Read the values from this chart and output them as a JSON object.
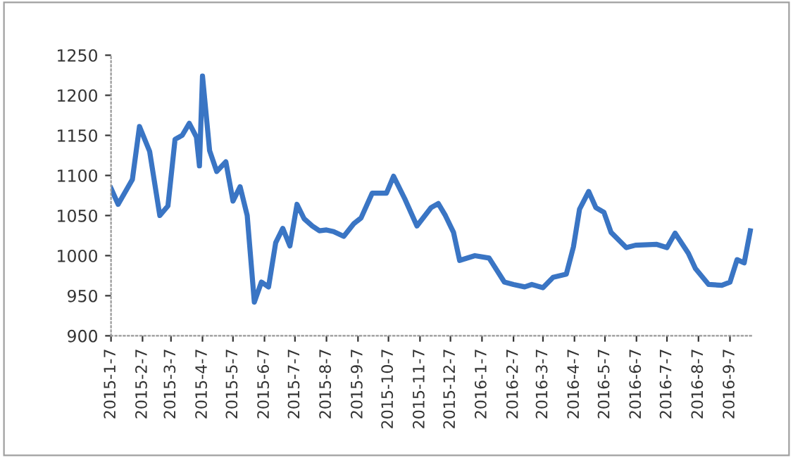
{
  "chart_data": {
    "type": "line",
    "x": [
      "2015-01-07",
      "2015-01-14",
      "2015-01-28",
      "2015-02-04",
      "2015-02-14",
      "2015-02-24",
      "2015-03-04",
      "2015-03-11",
      "2015-03-18",
      "2015-03-25",
      "2015-04-01",
      "2015-04-04",
      "2015-04-07",
      "2015-04-14",
      "2015-04-21",
      "2015-04-30",
      "2015-05-07",
      "2015-05-14",
      "2015-05-21",
      "2015-05-28",
      "2015-06-04",
      "2015-06-11",
      "2015-06-18",
      "2015-06-25",
      "2015-07-02",
      "2015-07-09",
      "2015-07-16",
      "2015-07-24",
      "2015-07-31",
      "2015-08-07",
      "2015-08-14",
      "2015-08-24",
      "2015-09-03",
      "2015-09-10",
      "2015-09-21",
      "2015-10-05",
      "2015-10-12",
      "2015-10-23",
      "2015-11-04",
      "2015-11-18",
      "2015-11-25",
      "2015-12-02",
      "2015-12-10",
      "2015-12-16",
      "2015-12-31",
      "2016-01-14",
      "2016-01-29",
      "2016-02-07",
      "2016-02-18",
      "2016-02-25",
      "2016-03-07",
      "2016-03-17",
      "2016-03-30",
      "2016-04-06",
      "2016-04-12",
      "2016-04-21",
      "2016-04-28",
      "2016-05-06",
      "2016-05-13",
      "2016-05-28",
      "2016-06-06",
      "2016-06-27",
      "2016-07-07",
      "2016-07-15",
      "2016-07-28",
      "2016-08-04",
      "2016-08-17",
      "2016-08-30",
      "2016-09-07",
      "2016-09-14",
      "2016-09-21",
      "2016-09-27"
    ],
    "series": [
      {
        "color": "#3a75c4",
        "values": [
          1084,
          1064,
          1095,
          1161,
          1130,
          1050,
          1062,
          1145,
          1150,
          1165,
          1148,
          1112,
          1224,
          1131,
          1105,
          1117,
          1068,
          1086,
          1050,
          942,
          967,
          961,
          1016,
          1034,
          1012,
          1064,
          1046,
          1037,
          1031,
          1032,
          1030,
          1024,
          1040,
          1047,
          1078,
          1078,
          1099,
          1071,
          1037,
          1060,
          1065,
          1050,
          1029,
          994,
          1000,
          997,
          967,
          964,
          961,
          964,
          960,
          973,
          977,
          1011,
          1058,
          1080,
          1060,
          1054,
          1029,
          1010,
          1013,
          1014,
          1010,
          1028,
          1003,
          984,
          964,
          963,
          967,
          995,
          991,
          1031
        ]
      }
    ],
    "xlim": [
      "2015-01-07",
      "2016-09-30"
    ],
    "xticks": [
      {
        "value": "2015-01-07",
        "label": "2015-1-7"
      },
      {
        "value": "2015-02-07",
        "label": "2015-2-7"
      },
      {
        "value": "2015-03-07",
        "label": "2015-3-7"
      },
      {
        "value": "2015-04-07",
        "label": "2015-4-7"
      },
      {
        "value": "2015-05-07",
        "label": "2015-5-7"
      },
      {
        "value": "2015-06-07",
        "label": "2015-6-7"
      },
      {
        "value": "2015-07-07",
        "label": "2015-7-7"
      },
      {
        "value": "2015-08-07",
        "label": "2015-8-7"
      },
      {
        "value": "2015-09-07",
        "label": "2015-9-7"
      },
      {
        "value": "2015-10-07",
        "label": "2015-10-7"
      },
      {
        "value": "2015-11-07",
        "label": "2015-11-7"
      },
      {
        "value": "2015-12-07",
        "label": "2015-12-7"
      },
      {
        "value": "2016-01-07",
        "label": "2016-1-7"
      },
      {
        "value": "2016-02-07",
        "label": "2016-2-7"
      },
      {
        "value": "2016-03-07",
        "label": "2016-3-7"
      },
      {
        "value": "2016-04-07",
        "label": "2016-4-7"
      },
      {
        "value": "2016-05-07",
        "label": "2016-5-7"
      },
      {
        "value": "2016-06-07",
        "label": "2016-6-7"
      },
      {
        "value": "2016-07-07",
        "label": "2016-7-7"
      },
      {
        "value": "2016-08-07",
        "label": "2016-8-7"
      },
      {
        "value": "2016-09-07",
        "label": "2016-9-7"
      }
    ],
    "ylim": [
      900,
      1250
    ],
    "yticks": [
      900,
      950,
      1000,
      1050,
      1100,
      1150,
      1200,
      1250
    ],
    "grid": false,
    "marker": "none",
    "line_style": "solid"
  }
}
